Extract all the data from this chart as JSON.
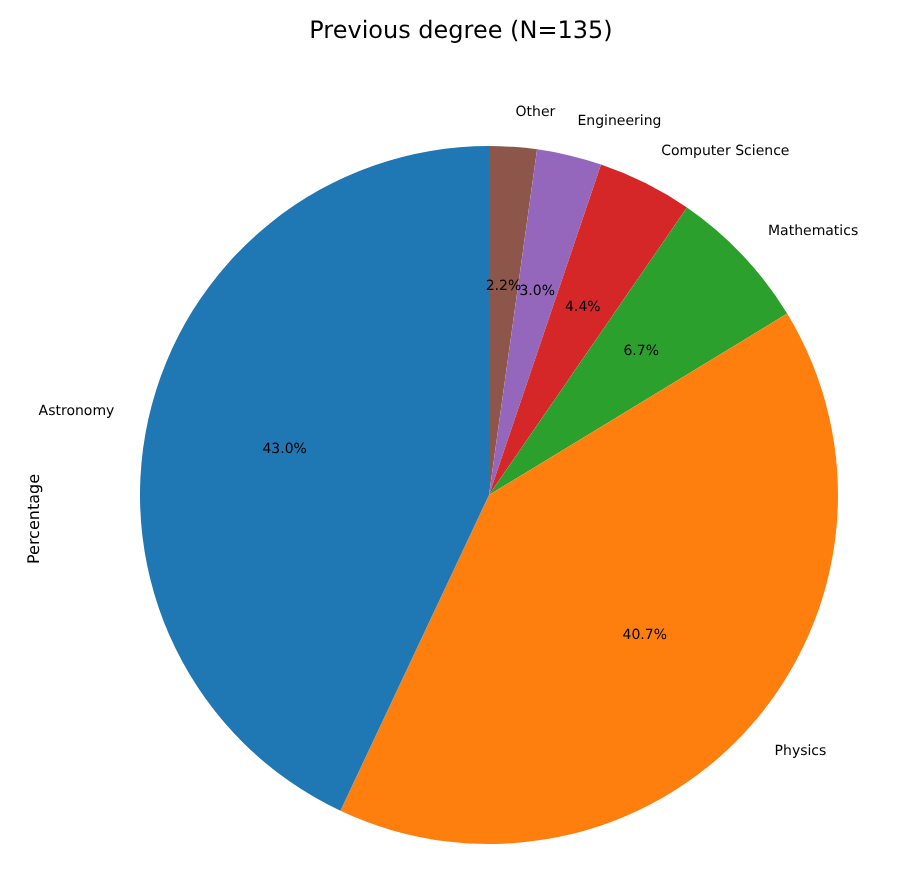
{
  "chart_data": {
    "type": "pie",
    "title": "Previous degree  (N=135)",
    "ylabel": "Percentage",
    "categories": [
      "Astronomy",
      "Physics",
      "Mathematics",
      "Computer Science",
      "Engineering",
      "Other"
    ],
    "values": [
      43.0,
      40.7,
      6.7,
      4.4,
      3.0,
      2.2
    ],
    "colors": [
      "#1f77b4",
      "#ff7f0e",
      "#2ca02c",
      "#d62728",
      "#9467bd",
      "#8c564b"
    ],
    "value_labels": [
      "43.0%",
      "40.7%",
      "6.7%",
      "4.4%",
      "3.0%",
      "2.2%"
    ],
    "legend": false
  }
}
